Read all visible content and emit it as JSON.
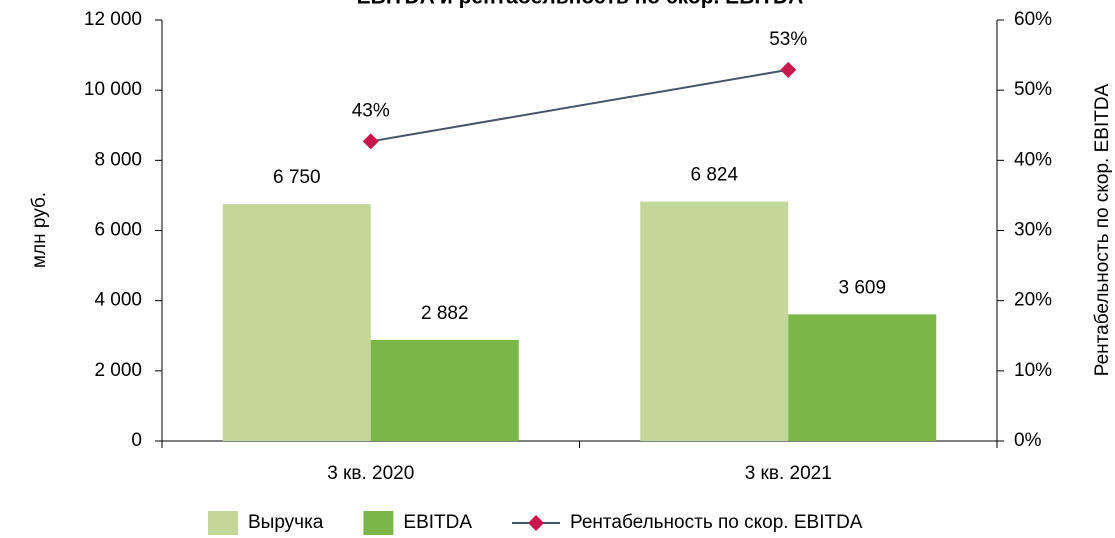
{
  "chart_data": {
    "type": "bar_line",
    "title": "EBITDA и рентабельность по скор. EBITDA",
    "ylabel": "млн руб.",
    "y2label": "Рентабельность по скор. EBITDA",
    "categories": [
      "3 кв. 2020",
      "3 кв. 2021"
    ],
    "series": [
      {
        "name": "Выручка",
        "type": "bar",
        "color": "#c4d79b",
        "values": [
          6750,
          6824
        ],
        "value_labels": [
          "6 750",
          "6 824"
        ]
      },
      {
        "name": "EBITDA",
        "type": "bar",
        "color": "#7ab648",
        "values": [
          2882,
          3609
        ],
        "value_labels": [
          "2 882",
          "3 609"
        ]
      },
      {
        "name": "Рентабельность по скор. EBITDA",
        "type": "line",
        "axis": "y2",
        "color": "#44546a",
        "marker_color": "#c8174b",
        "values": [
          42.7,
          52.9
        ],
        "value_labels": [
          "43%",
          "53%"
        ]
      }
    ],
    "ylim": [
      0,
      12000
    ],
    "yticks": [
      0,
      {
        "value": 2000,
        "label": "2 000"
      },
      {
        "value": 4000,
        "label": "4 000"
      },
      {
        "value": 6000,
        "label": "6 000"
      },
      {
        "value": 8000,
        "label": "8 000"
      },
      {
        "value": 10000,
        "label": "10 000"
      },
      {
        "value": 12000,
        "label": "12 000"
      }
    ],
    "y2lim": [
      0,
      60
    ],
    "y2ticks": [
      {
        "value": 0,
        "label": "0%"
      },
      {
        "value": 10,
        "label": "10%"
      },
      {
        "value": 20,
        "label": "20%"
      },
      {
        "value": 30,
        "label": "30%"
      },
      {
        "value": 40,
        "label": "40%"
      },
      {
        "value": 50,
        "label": "50%"
      },
      {
        "value": 60,
        "label": "60%"
      }
    ],
    "legend": "bottom"
  }
}
